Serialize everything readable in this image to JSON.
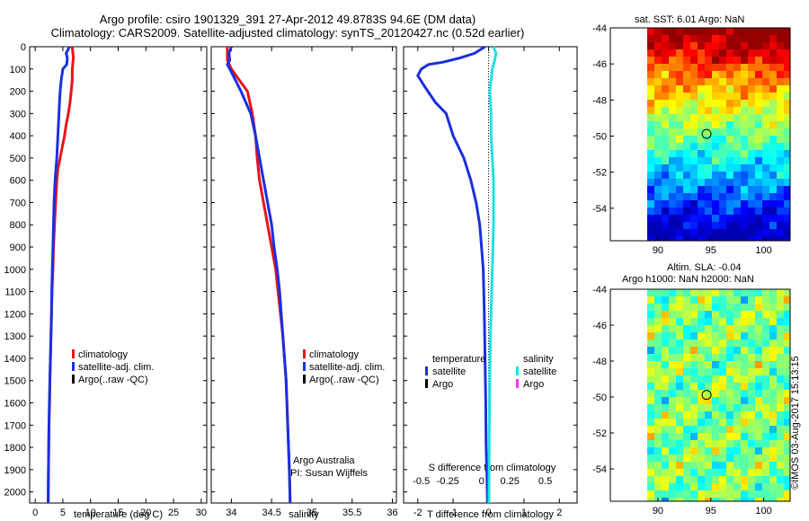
{
  "header": {
    "line1": "Argo profile: csiro 1901329_391 27-Apr-2012 49.8783S 94.6E (DM data)",
    "line2": "Climatology: CARS2009. Satellite-adjusted climatology: synTS_20120427.nc (0.52d earlier)"
  },
  "stamp": "©IMOS 03-Aug-2017 15:13:15",
  "colors": {
    "climatology": "#e8141a",
    "satellite": "#1a2fe0",
    "argo": "#000000",
    "sal_satellite": "#22e0e0",
    "sal_argo": "#ff33ff"
  },
  "panels": {
    "temperature": {
      "xlabel": "temperature (deg C)"
    },
    "salinity": {
      "xlabel": "salinity"
    },
    "difference": {
      "toplabel": "S difference from climatology",
      "xlabel": "T difference from climatology"
    }
  },
  "legend": {
    "climatology": "climatology",
    "satellite_adj": "satellite-adj. clim.",
    "argo_raw": "Argo(..raw -QC)",
    "temperature_head": "temperature",
    "salinity_head": "salinity",
    "satellite": "satellite",
    "argo": "Argo"
  },
  "credits": {
    "line1": "Argo Australia",
    "line2": "PI: Susan Wijffels"
  },
  "maps": {
    "sst_title": "sat. SST: 6.01  Argo: NaN",
    "sla_title1": "Altim. SLA: -0.04",
    "sla_title2": "Argo h1000: NaN  h2000: NaN",
    "xticks": [
      90,
      95,
      100
    ],
    "yticks": [
      -44,
      -46,
      -48,
      -50,
      -52,
      -54
    ],
    "float_lon": 94.6,
    "float_lat": -49.88
  },
  "chart_data": [
    {
      "type": "line",
      "ylabel": "",
      "xlabel": "temperature (deg C)",
      "xlim": [
        -1,
        31
      ],
      "ylim": [
        2050,
        0
      ],
      "xticks": [
        0,
        5,
        10,
        15,
        20,
        25,
        30
      ],
      "yticks": [
        0,
        100,
        200,
        300,
        400,
        500,
        600,
        700,
        800,
        900,
        1000,
        1100,
        1200,
        1300,
        1400,
        1500,
        1600,
        1700,
        1800,
        1900,
        2000
      ],
      "series": [
        {
          "name": "climatology",
          "points": [
            [
              6.7,
              0
            ],
            [
              6.9,
              50
            ],
            [
              6.7,
              100
            ],
            [
              6.7,
              150
            ],
            [
              6.5,
              200
            ],
            [
              6.3,
              250
            ],
            [
              6.0,
              300
            ],
            [
              5.6,
              350
            ],
            [
              5.3,
              400
            ],
            [
              4.9,
              450
            ],
            [
              4.5,
              500
            ],
            [
              4.1,
              550
            ],
            [
              3.9,
              600
            ],
            [
              3.7,
              700
            ],
            [
              3.5,
              800
            ],
            [
              3.3,
              900
            ],
            [
              3.2,
              1000
            ],
            [
              3.05,
              1100
            ],
            [
              2.95,
              1200
            ],
            [
              2.85,
              1300
            ],
            [
              2.75,
              1400
            ],
            [
              2.65,
              1500
            ],
            [
              2.6,
              1600
            ],
            [
              2.5,
              1700
            ],
            [
              2.45,
              1800
            ],
            [
              2.4,
              1900
            ],
            [
              2.35,
              2050
            ]
          ]
        },
        {
          "name": "satellite-adj. clim.",
          "points": [
            [
              6.2,
              0
            ],
            [
              5.6,
              30
            ],
            [
              5.8,
              50
            ],
            [
              5.7,
              80
            ],
            [
              5.0,
              100
            ],
            [
              4.7,
              150
            ],
            [
              4.5,
              200
            ],
            [
              4.4,
              250
            ],
            [
              4.3,
              300
            ],
            [
              4.2,
              350
            ],
            [
              4.1,
              400
            ],
            [
              4.0,
              450
            ],
            [
              3.9,
              500
            ],
            [
              3.75,
              550
            ],
            [
              3.6,
              600
            ],
            [
              3.4,
              700
            ],
            [
              3.3,
              800
            ],
            [
              3.2,
              900
            ],
            [
              3.1,
              1000
            ],
            [
              3.0,
              1100
            ],
            [
              2.95,
              1200
            ],
            [
              2.85,
              1300
            ],
            [
              2.75,
              1400
            ],
            [
              2.65,
              1500
            ],
            [
              2.55,
              1600
            ],
            [
              2.5,
              1700
            ],
            [
              2.45,
              1800
            ],
            [
              2.4,
              1900
            ],
            [
              2.35,
              2050
            ]
          ]
        }
      ]
    },
    {
      "type": "line",
      "ylabel": "",
      "xlabel": "salinity",
      "xlim": [
        33.75,
        36.05
      ],
      "ylim": [
        2050,
        0
      ],
      "xticks": [
        34,
        34.5,
        35,
        35.5,
        36
      ],
      "series": [
        {
          "name": "climatology",
          "points": [
            [
              33.95,
              0
            ],
            [
              33.95,
              30
            ],
            [
              33.95,
              60
            ],
            [
              34.0,
              100
            ],
            [
              34.1,
              150
            ],
            [
              34.2,
              200
            ],
            [
              34.26,
              300
            ],
            [
              34.3,
              400
            ],
            [
              34.32,
              500
            ],
            [
              34.35,
              600
            ],
            [
              34.4,
              700
            ],
            [
              34.45,
              800
            ],
            [
              34.5,
              900
            ],
            [
              34.55,
              1000
            ],
            [
              34.58,
              1100
            ],
            [
              34.61,
              1200
            ],
            [
              34.64,
              1300
            ],
            [
              34.66,
              1400
            ],
            [
              34.68,
              1500
            ],
            [
              34.69,
              1600
            ],
            [
              34.7,
              1700
            ],
            [
              34.71,
              1800
            ],
            [
              34.72,
              1900
            ],
            [
              34.73,
              2050
            ]
          ]
        },
        {
          "name": "satellite-adj. clim.",
          "points": [
            [
              34.0,
              0
            ],
            [
              33.97,
              30
            ],
            [
              33.98,
              60
            ],
            [
              33.95,
              80
            ],
            [
              33.98,
              100
            ],
            [
              34.05,
              150
            ],
            [
              34.12,
              200
            ],
            [
              34.18,
              250
            ],
            [
              34.24,
              300
            ],
            [
              34.3,
              400
            ],
            [
              34.35,
              500
            ],
            [
              34.4,
              600
            ],
            [
              34.45,
              700
            ],
            [
              34.5,
              800
            ],
            [
              34.53,
              900
            ],
            [
              34.57,
              1000
            ],
            [
              34.6,
              1100
            ],
            [
              34.62,
              1200
            ],
            [
              34.64,
              1300
            ],
            [
              34.66,
              1400
            ],
            [
              34.68,
              1500
            ],
            [
              34.69,
              1600
            ],
            [
              34.7,
              1700
            ],
            [
              34.71,
              1800
            ],
            [
              34.72,
              1900
            ],
            [
              34.73,
              2050
            ]
          ]
        }
      ]
    },
    {
      "type": "line",
      "xlabel": "T difference from climatology",
      "xlabel_top": "S difference from climatology",
      "xlim": [
        -2.4,
        2.5
      ],
      "ylim": [
        2050,
        0
      ],
      "xticks": [
        -2,
        -1,
        0,
        1,
        2
      ],
      "top_ticks": [
        -0.5,
        -0.25,
        0,
        0.25,
        0.5
      ],
      "series": [
        {
          "name": "temperature satellite",
          "points": [
            [
              -0.1,
              0
            ],
            [
              -0.4,
              30
            ],
            [
              -0.8,
              50
            ],
            [
              -1.3,
              70
            ],
            [
              -1.7,
              80
            ],
            [
              -1.9,
              100
            ],
            [
              -2.0,
              130
            ],
            [
              -1.8,
              180
            ],
            [
              -1.5,
              250
            ],
            [
              -1.2,
              300
            ],
            [
              -1.0,
              400
            ],
            [
              -0.7,
              500
            ],
            [
              -0.5,
              600
            ],
            [
              -0.35,
              700
            ],
            [
              -0.25,
              800
            ],
            [
              -0.2,
              900
            ],
            [
              -0.15,
              1000
            ],
            [
              -0.12,
              1200
            ],
            [
              -0.1,
              1400
            ],
            [
              -0.08,
              1600
            ],
            [
              -0.07,
              1800
            ],
            [
              -0.05,
              1900
            ],
            [
              -0.03,
              2050
            ]
          ]
        },
        {
          "name": "salinity satellite",
          "points": [
            [
              0.04,
              0
            ],
            [
              0.06,
              30
            ],
            [
              0.05,
              60
            ],
            [
              0.03,
              100
            ],
            [
              0.02,
              150
            ],
            [
              0.01,
              200
            ],
            [
              0.02,
              300
            ],
            [
              0.02,
              400
            ],
            [
              0.03,
              500
            ],
            [
              0.04,
              600
            ],
            [
              0.04,
              700
            ],
            [
              0.04,
              800
            ],
            [
              0.035,
              900
            ],
            [
              0.03,
              1000
            ],
            [
              0.025,
              1100
            ],
            [
              0.02,
              1200
            ],
            [
              0.015,
              1300
            ],
            [
              0.012,
              1400
            ],
            [
              0.01,
              1500
            ],
            [
              0.008,
              1600
            ],
            [
              0.006,
              1700
            ],
            [
              0.005,
              1800
            ],
            [
              0.004,
              1900
            ],
            [
              0.003,
              2050
            ]
          ]
        }
      ]
    }
  ]
}
